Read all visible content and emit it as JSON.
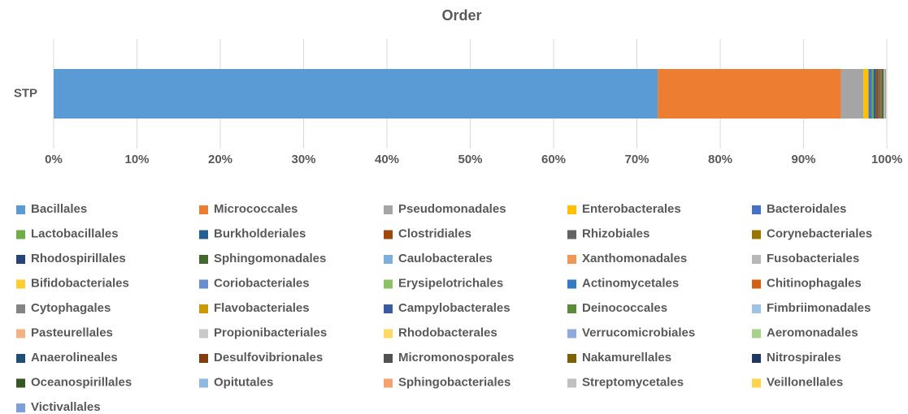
{
  "chart_data": {
    "type": "stacked_barh",
    "title": "Order",
    "categories": [
      "STP"
    ],
    "xlim": [
      0,
      100
    ],
    "xticks": [
      {
        "value": 0,
        "label": "0%"
      },
      {
        "value": 10,
        "label": "10%"
      },
      {
        "value": 20,
        "label": "20%"
      },
      {
        "value": 30,
        "label": "30%"
      },
      {
        "value": 40,
        "label": "40%"
      },
      {
        "value": 50,
        "label": "50%"
      },
      {
        "value": 60,
        "label": "60%"
      },
      {
        "value": 70,
        "label": "70%"
      },
      {
        "value": 80,
        "label": "80%"
      },
      {
        "value": 90,
        "label": "90%"
      },
      {
        "value": 100,
        "label": "100%"
      }
    ],
    "grid": true,
    "legend": "bottom",
    "series": [
      {
        "name": "Bacillales",
        "color": "#5b9bd5",
        "values": [
          72.5
        ]
      },
      {
        "name": "Micrococcales",
        "color": "#ed7d31",
        "values": [
          22.0
        ]
      },
      {
        "name": "Pseudomonadales",
        "color": "#a5a5a5",
        "values": [
          2.7
        ]
      },
      {
        "name": "Enterobacterales",
        "color": "#ffc000",
        "values": [
          0.6
        ]
      },
      {
        "name": "Bacteroidales",
        "color": "#4472c4",
        "values": [
          0.4
        ]
      },
      {
        "name": "Lactobacillales",
        "color": "#70ad47",
        "values": [
          0.2
        ]
      },
      {
        "name": "Burkholderiales",
        "color": "#255e91",
        "values": [
          0.3
        ]
      },
      {
        "name": "Clostridiales",
        "color": "#9e480e",
        "values": [
          0.3
        ]
      },
      {
        "name": "Rhizobiales",
        "color": "#636363",
        "values": [
          0.2
        ]
      },
      {
        "name": "Corynebacteriales",
        "color": "#997300",
        "values": [
          0.2
        ]
      },
      {
        "name": "Rhodospirillales",
        "color": "#264478",
        "values": [
          0.1
        ]
      },
      {
        "name": "Sphingomonadales",
        "color": "#43682b",
        "values": [
          0.1
        ]
      },
      {
        "name": "Caulobacterales",
        "color": "#7cafdd",
        "values": [
          0.05
        ]
      },
      {
        "name": "Xanthomonadales",
        "color": "#f1975a",
        "values": [
          0.01
        ]
      },
      {
        "name": "Fusobacteriales",
        "color": "#b7b7b7",
        "values": [
          0.01
        ]
      },
      {
        "name": "Bifidobacteriales",
        "color": "#ffcd33",
        "values": [
          0.01
        ]
      },
      {
        "name": "Coriobacteriales",
        "color": "#698ed0",
        "values": [
          0.01
        ]
      },
      {
        "name": "Erysipelotrichales",
        "color": "#8cc168",
        "values": [
          0.01
        ]
      },
      {
        "name": "Actinomycetales",
        "color": "#327dc2",
        "values": [
          0.01
        ]
      },
      {
        "name": "Chitinophagales",
        "color": "#d26012",
        "values": [
          0.01
        ]
      },
      {
        "name": "Cytophagales",
        "color": "#848484",
        "values": [
          0.01
        ]
      },
      {
        "name": "Flavobacteriales",
        "color": "#cc9a00",
        "values": [
          0.01
        ]
      },
      {
        "name": "Campylobacterales",
        "color": "#3a5ba0",
        "values": [
          0.01
        ]
      },
      {
        "name": "Deinococcales",
        "color": "#5a8c39",
        "values": [
          0.01
        ]
      },
      {
        "name": "Fimbriimonadales",
        "color": "#9dc3e6",
        "values": [
          0.01
        ]
      },
      {
        "name": "Pasteurellales",
        "color": "#f4b183",
        "values": [
          0.01
        ]
      },
      {
        "name": "Propionibacteriales",
        "color": "#c9c9c9",
        "values": [
          0.01
        ]
      },
      {
        "name": "Rhodobacterales",
        "color": "#ffd966",
        "values": [
          0.01
        ]
      },
      {
        "name": "Verrucomicrobiales",
        "color": "#8faadc",
        "values": [
          0.01
        ]
      },
      {
        "name": "Aeromonadales",
        "color": "#a9d18e",
        "values": [
          0.01
        ]
      },
      {
        "name": "Anaerolineales",
        "color": "#1f4e79",
        "values": [
          0.01
        ]
      },
      {
        "name": "Desulfovibrionales",
        "color": "#843c0c",
        "values": [
          0.01
        ]
      },
      {
        "name": "Micromonosporales",
        "color": "#525252",
        "values": [
          0.01
        ]
      },
      {
        "name": "Nakamurellales",
        "color": "#7f6000",
        "values": [
          0.01
        ]
      },
      {
        "name": "Nitrospirales",
        "color": "#203864",
        "values": [
          0.01
        ]
      },
      {
        "name": "Oceanospirillales",
        "color": "#375623",
        "values": [
          0.01
        ]
      },
      {
        "name": "Opitutales",
        "color": "#8fb9e3",
        "values": [
          0.01
        ]
      },
      {
        "name": "Sphingobacteriales",
        "color": "#f4a270",
        "values": [
          0.01
        ]
      },
      {
        "name": "Streptomycetales",
        "color": "#c0c0c0",
        "values": [
          0.01
        ]
      },
      {
        "name": "Veillonellales",
        "color": "#ffd34d",
        "values": [
          0.01
        ]
      },
      {
        "name": "Victivallales",
        "color": "#7e9fd9",
        "values": [
          0.01
        ]
      }
    ]
  }
}
